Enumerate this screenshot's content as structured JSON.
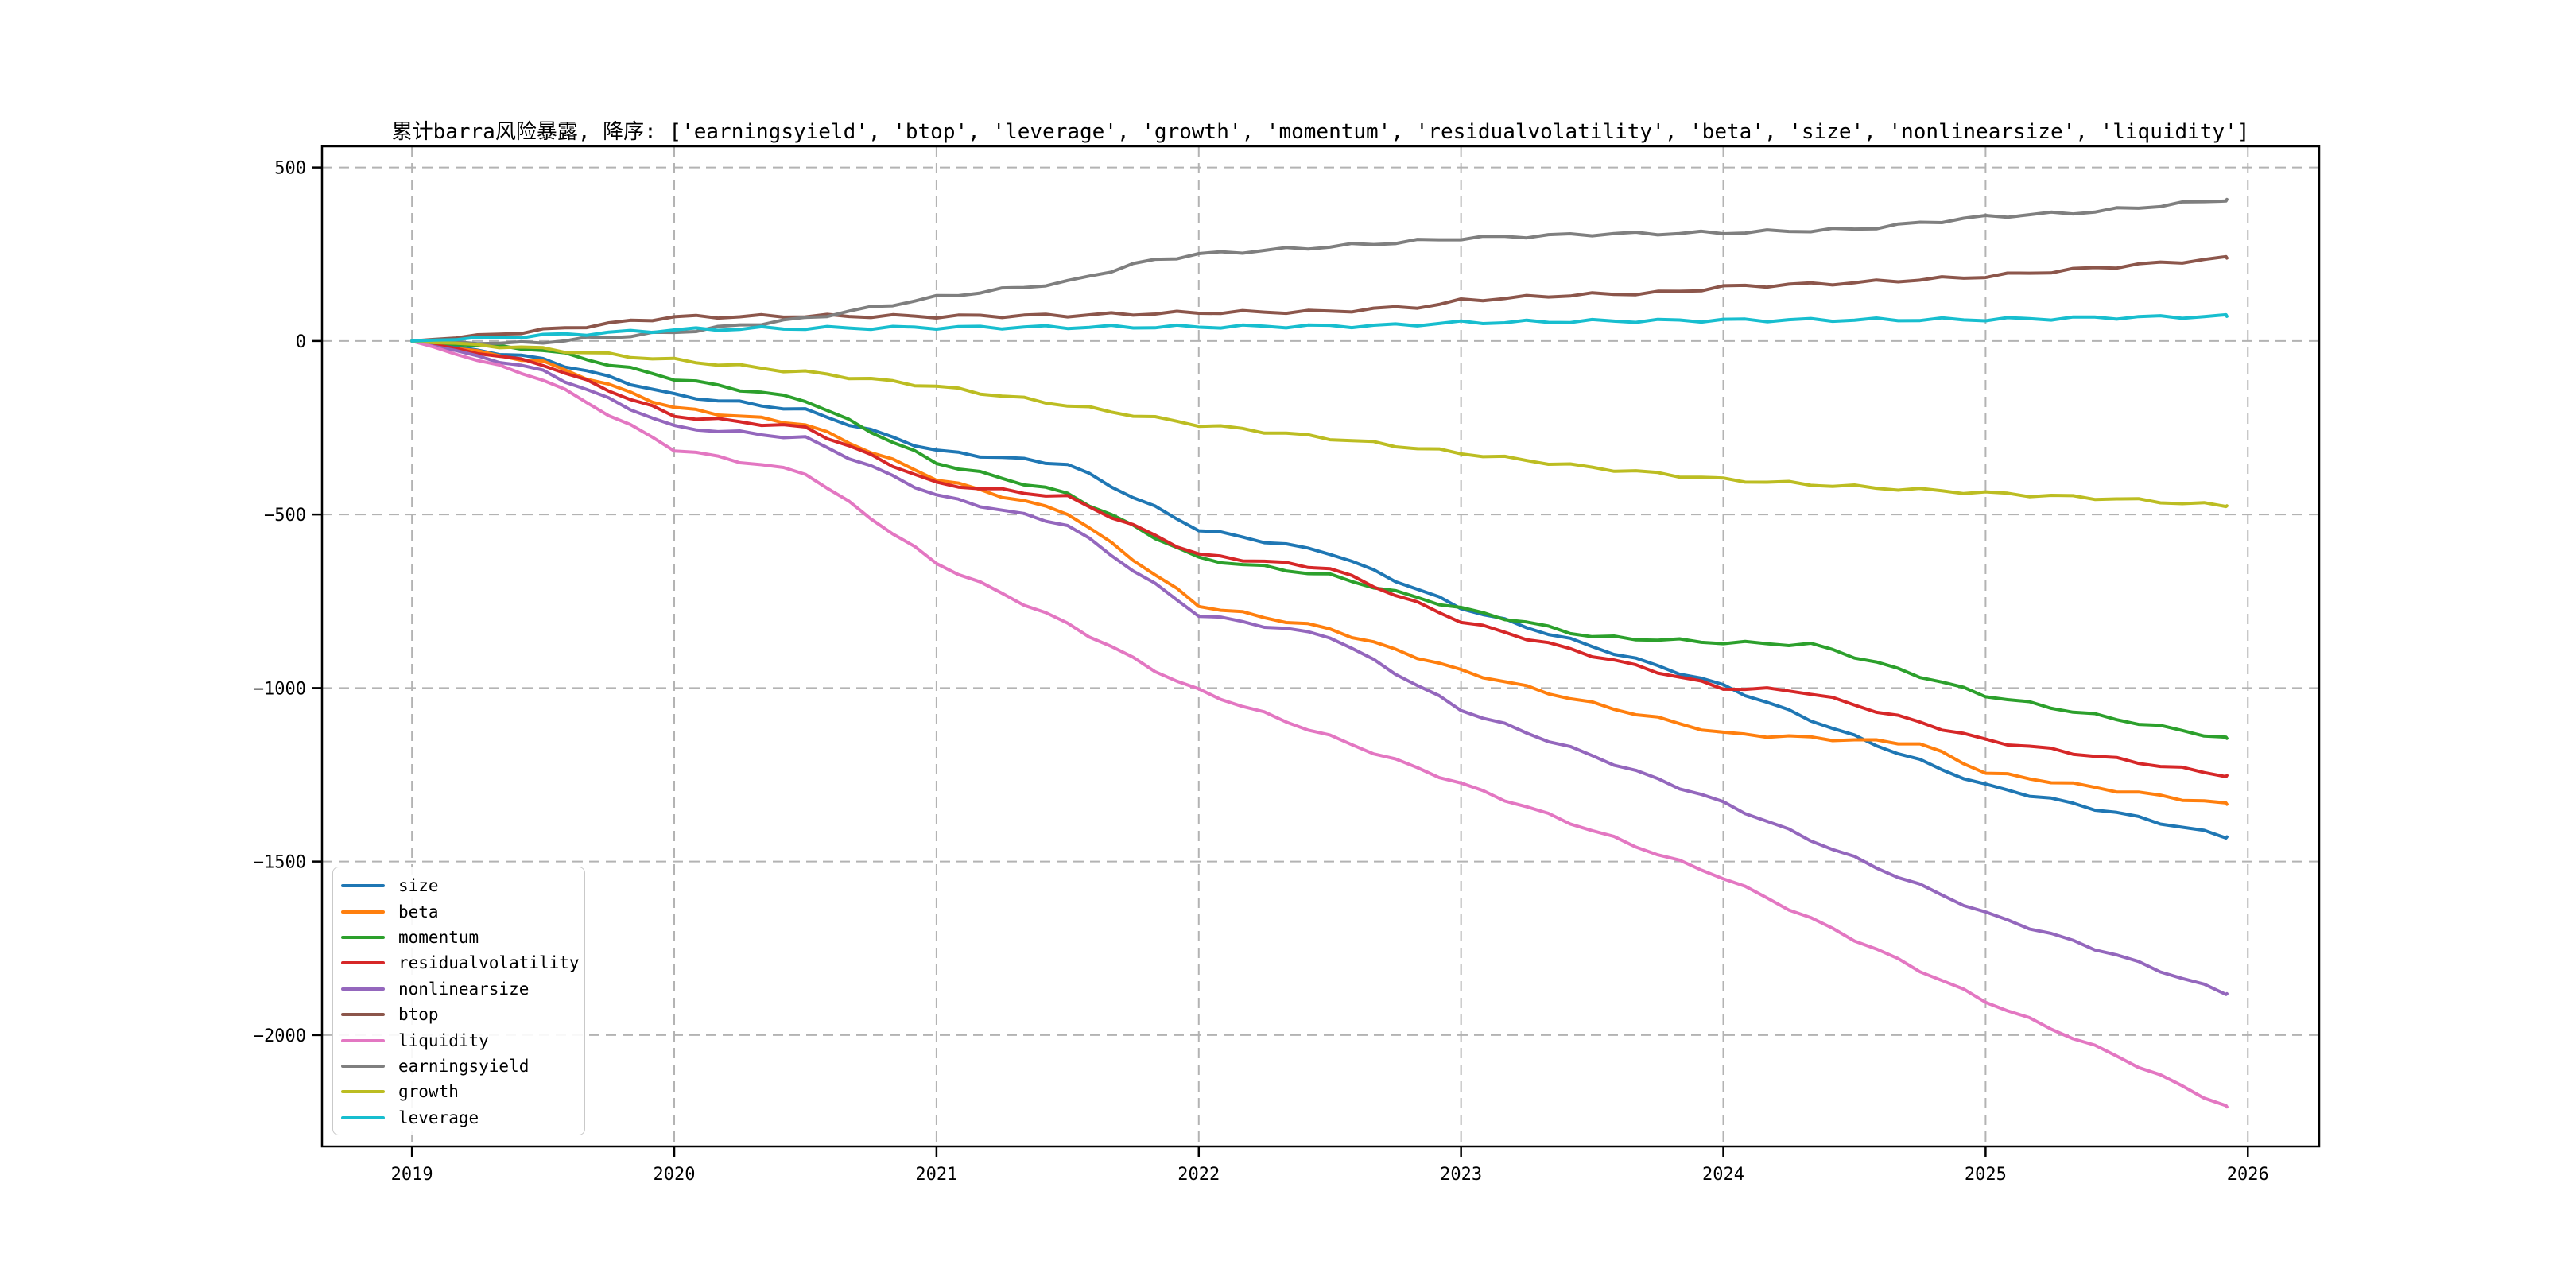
{
  "figure": {
    "title": "累计barra风险暴露, 降序: ['earningsyield', 'btop', 'leverage', 'growth', 'momentum', 'residualvolatility', 'beta', 'size', 'nonlinearsize', 'liquidity']"
  },
  "chart_data": {
    "type": "line",
    "title": "累计barra风险暴露, 降序: ['earningsyield', 'btop', 'leverage', 'growth', 'momentum', 'residualvolatility', 'beta', 'size', 'nonlinearsize', 'liquidity']",
    "xlabel": "",
    "ylabel": "",
    "xlim": [
      2018.657,
      2026.272
    ],
    "ylim": [
      -2321,
      561
    ],
    "x_ticks": [
      2019,
      2020,
      2021,
      2022,
      2023,
      2024,
      2025,
      2026
    ],
    "x_tick_labels": [
      "2019",
      "2020",
      "2021",
      "2022",
      "2023",
      "2024",
      "2025",
      "2026"
    ],
    "y_ticks": [
      500,
      0,
      -500,
      -1000,
      -1500,
      -2000
    ],
    "y_tick_labels": [
      "500",
      "0",
      "−500",
      "−1000",
      "−1500",
      "−2000"
    ],
    "grid": true,
    "grid_style": "dashed",
    "legend_position": "lower left",
    "series": [
      {
        "name": "size",
        "color": "#1f77b4",
        "points": [
          [
            2019,
            0
          ],
          [
            2019.5,
            -53
          ],
          [
            2020,
            -156
          ],
          [
            2020.5,
            -200
          ],
          [
            2021,
            -317
          ],
          [
            2021.5,
            -355
          ],
          [
            2022,
            -543
          ],
          [
            2022.5,
            -610
          ],
          [
            2023,
            -768
          ],
          [
            2023.5,
            -880
          ],
          [
            2024,
            -993
          ],
          [
            2024.5,
            -1140
          ],
          [
            2025,
            -1281
          ],
          [
            2025.5,
            -1360
          ],
          [
            2025.92,
            -1429
          ]
        ]
      },
      {
        "name": "beta",
        "color": "#ff7f0e",
        "points": [
          [
            2019,
            0
          ],
          [
            2019.5,
            -62
          ],
          [
            2020,
            -193
          ],
          [
            2020.5,
            -240
          ],
          [
            2021,
            -397
          ],
          [
            2021.5,
            -495
          ],
          [
            2022,
            -762
          ],
          [
            2022.5,
            -830
          ],
          [
            2023,
            -950
          ],
          [
            2023.5,
            -1045
          ],
          [
            2024,
            -1131
          ],
          [
            2024.3,
            -1142
          ],
          [
            2024.75,
            -1160
          ],
          [
            2025,
            -1243
          ],
          [
            2025.5,
            -1295
          ],
          [
            2025.92,
            -1335
          ]
        ]
      },
      {
        "name": "momentum",
        "color": "#2ca02c",
        "points": [
          [
            2019,
            0
          ],
          [
            2019.5,
            -25
          ],
          [
            2020,
            -108
          ],
          [
            2020.5,
            -170
          ],
          [
            2021,
            -351
          ],
          [
            2021.5,
            -440
          ],
          [
            2022,
            -627
          ],
          [
            2022.5,
            -676
          ],
          [
            2023,
            -771
          ],
          [
            2023.5,
            -852
          ],
          [
            2024,
            -869
          ],
          [
            2024.35,
            -875
          ],
          [
            2025,
            -1021
          ],
          [
            2025.5,
            -1090
          ],
          [
            2025.92,
            -1145
          ]
        ]
      },
      {
        "name": "residualvolatility",
        "color": "#d62728",
        "points": [
          [
            2019,
            0
          ],
          [
            2019.5,
            -67
          ],
          [
            2020,
            -216
          ],
          [
            2020.5,
            -250
          ],
          [
            2021,
            -411
          ],
          [
            2021.5,
            -450
          ],
          [
            2022,
            -616
          ],
          [
            2022.5,
            -655
          ],
          [
            2023,
            -807
          ],
          [
            2023.5,
            -905
          ],
          [
            2024,
            -1000
          ],
          [
            2024.3,
            -1008
          ],
          [
            2025,
            -1150
          ],
          [
            2025.5,
            -1205
          ],
          [
            2025.92,
            -1252
          ]
        ]
      },
      {
        "name": "nonlinearsize",
        "color": "#9467bd",
        "points": [
          [
            2019,
            0
          ],
          [
            2019.5,
            -87
          ],
          [
            2020,
            -248
          ],
          [
            2020.5,
            -280
          ],
          [
            2021,
            -445
          ],
          [
            2021.5,
            -530
          ],
          [
            2022,
            -789
          ],
          [
            2022.5,
            -851
          ],
          [
            2023,
            -1062
          ],
          [
            2023.5,
            -1195
          ],
          [
            2024,
            -1331
          ],
          [
            2024.5,
            -1490
          ],
          [
            2025,
            -1649
          ],
          [
            2025.5,
            -1770
          ],
          [
            2025.92,
            -1881
          ]
        ]
      },
      {
        "name": "btop",
        "color": "#8c564b",
        "points": [
          [
            2019,
            0
          ],
          [
            2019.3,
            18
          ],
          [
            2019.6,
            38
          ],
          [
            2019.9,
            62
          ],
          [
            2020,
            69
          ],
          [
            2020.5,
            72
          ],
          [
            2021,
            71
          ],
          [
            2021.5,
            74
          ],
          [
            2022,
            82
          ],
          [
            2022.5,
            85
          ],
          [
            2022.9,
            102
          ],
          [
            2023,
            117
          ],
          [
            2023.4,
            132
          ],
          [
            2023.8,
            140
          ],
          [
            2024,
            156
          ],
          [
            2024.5,
            168
          ],
          [
            2025,
            186
          ],
          [
            2025.5,
            215
          ],
          [
            2025.92,
            239
          ]
        ]
      },
      {
        "name": "liquidity",
        "color": "#e377c2",
        "points": [
          [
            2019,
            0
          ],
          [
            2019.5,
            -110
          ],
          [
            2020,
            -312
          ],
          [
            2020.5,
            -380
          ],
          [
            2021,
            -640
          ],
          [
            2021.5,
            -815
          ],
          [
            2021.9,
            -975
          ],
          [
            2022,
            -1007
          ],
          [
            2022.5,
            -1140
          ],
          [
            2023,
            -1276
          ],
          [
            2023.5,
            -1410
          ],
          [
            2024,
            -1546
          ],
          [
            2024.5,
            -1724
          ],
          [
            2025,
            -1902
          ],
          [
            2025.5,
            -2060
          ],
          [
            2025.92,
            -2207
          ]
        ]
      },
      {
        "name": "earningsyield",
        "color": "#7f7f7f",
        "points": [
          [
            2019,
            0
          ],
          [
            2019.4,
            -8
          ],
          [
            2020,
            25
          ],
          [
            2020.5,
            65
          ],
          [
            2021,
            126
          ],
          [
            2021.5,
            170
          ],
          [
            2021.8,
            230
          ],
          [
            2022,
            250
          ],
          [
            2022.5,
            272
          ],
          [
            2023,
            296
          ],
          [
            2023.5,
            308
          ],
          [
            2024,
            312
          ],
          [
            2024.5,
            322
          ],
          [
            2025,
            358
          ],
          [
            2025.4,
            372
          ],
          [
            2025.92,
            408
          ]
        ]
      },
      {
        "name": "growth",
        "color": "#bcbd22",
        "points": [
          [
            2019,
            0
          ],
          [
            2019.5,
            -23
          ],
          [
            2020,
            -55
          ],
          [
            2020.5,
            -90
          ],
          [
            2021,
            -131
          ],
          [
            2021.5,
            -185
          ],
          [
            2022,
            -241
          ],
          [
            2022.5,
            -280
          ],
          [
            2023,
            -323
          ],
          [
            2023.5,
            -365
          ],
          [
            2024,
            -399
          ],
          [
            2024.5,
            -420
          ],
          [
            2025,
            -438
          ],
          [
            2025.5,
            -455
          ],
          [
            2025.92,
            -475
          ]
        ]
      },
      {
        "name": "leverage",
        "color": "#17becf",
        "points": [
          [
            2019,
            0
          ],
          [
            2019.5,
            16
          ],
          [
            2020,
            32
          ],
          [
            2020.3,
            36
          ],
          [
            2021,
            39
          ],
          [
            2022,
            41
          ],
          [
            2022.7,
            44
          ],
          [
            2023,
            53
          ],
          [
            2023.5,
            57
          ],
          [
            2024,
            60
          ],
          [
            2024.5,
            61
          ],
          [
            2025,
            62
          ],
          [
            2025.5,
            68
          ],
          [
            2025.92,
            71
          ]
        ]
      }
    ],
    "legend_entries": [
      "size",
      "beta",
      "momentum",
      "residualvolatility",
      "nonlinearsize",
      "btop",
      "liquidity",
      "earningsyield",
      "growth",
      "leverage"
    ]
  }
}
